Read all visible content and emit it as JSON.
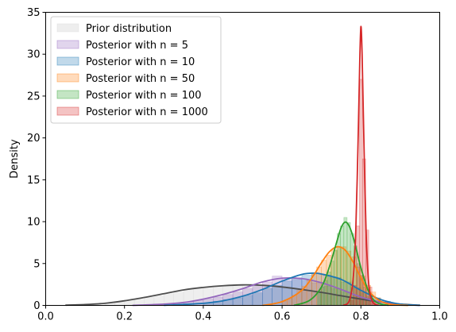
{
  "chart_data": {
    "type": "area",
    "title": "",
    "xlabel": "",
    "ylabel": "Density",
    "xlim": [
      0.0,
      1.0
    ],
    "ylim": [
      0,
      35
    ],
    "x_ticks": [
      "0.0",
      "0.2",
      "0.4",
      "0.6",
      "0.8",
      "1.0"
    ],
    "y_ticks": [
      "0",
      "5",
      "10",
      "15",
      "20",
      "25",
      "30",
      "35"
    ],
    "grid": false,
    "legend_position": "top-left",
    "series": [
      {
        "name": "Prior distribution",
        "hist_color": "#d9d9d9",
        "line_color": "#4d4d4d",
        "curve": {
          "x": [
            0.05,
            0.1,
            0.15,
            0.2,
            0.25,
            0.3,
            0.35,
            0.4,
            0.45,
            0.5,
            0.55,
            0.6,
            0.65,
            0.7,
            0.75,
            0.8,
            0.85,
            0.9,
            0.95
          ],
          "y": [
            0.03,
            0.1,
            0.25,
            0.55,
            0.95,
            1.4,
            1.85,
            2.15,
            2.35,
            2.45,
            2.4,
            2.2,
            1.9,
            1.55,
            1.15,
            0.75,
            0.4,
            0.15,
            0.03
          ]
        },
        "hist": {
          "bin_width": 0.025,
          "bins": [
            [
              0.15,
              0.3
            ],
            [
              0.175,
              0.4
            ],
            [
              0.2,
              0.6
            ],
            [
              0.225,
              0.75
            ],
            [
              0.25,
              1.0
            ],
            [
              0.275,
              1.2
            ],
            [
              0.3,
              1.4
            ],
            [
              0.325,
              1.6
            ],
            [
              0.35,
              1.9
            ],
            [
              0.375,
              2.0
            ],
            [
              0.4,
              2.2
            ],
            [
              0.425,
              2.3
            ],
            [
              0.45,
              2.4
            ],
            [
              0.475,
              2.5
            ],
            [
              0.5,
              2.5
            ],
            [
              0.525,
              2.4
            ],
            [
              0.55,
              2.5
            ],
            [
              0.575,
              2.3
            ],
            [
              0.6,
              2.2
            ],
            [
              0.625,
              2.0
            ],
            [
              0.65,
              1.9
            ],
            [
              0.675,
              1.7
            ],
            [
              0.7,
              1.5
            ],
            [
              0.725,
              1.3
            ],
            [
              0.75,
              1.1
            ],
            [
              0.775,
              0.9
            ],
            [
              0.8,
              0.7
            ],
            [
              0.825,
              0.5
            ],
            [
              0.85,
              0.35
            ],
            [
              0.875,
              0.2
            ]
          ]
        }
      },
      {
        "name": "Posterior with n = 5",
        "hist_color": "#9467bd",
        "line_color": "#9467bd",
        "curve": {
          "x": [
            0.22,
            0.3,
            0.35,
            0.4,
            0.45,
            0.5,
            0.55,
            0.6,
            0.65,
            0.7,
            0.75,
            0.8,
            0.85,
            0.9,
            0.95
          ],
          "y": [
            0.0,
            0.15,
            0.35,
            0.75,
            1.3,
            2.0,
            2.8,
            3.25,
            3.2,
            2.7,
            1.9,
            1.0,
            0.4,
            0.1,
            0.01
          ]
        },
        "hist": {
          "bin_width": 0.025,
          "bins": [
            [
              0.35,
              0.4
            ],
            [
              0.375,
              0.6
            ],
            [
              0.4,
              0.8
            ],
            [
              0.425,
              1.0
            ],
            [
              0.45,
              1.3
            ],
            [
              0.475,
              1.6
            ],
            [
              0.5,
              2.0
            ],
            [
              0.525,
              2.4
            ],
            [
              0.55,
              2.8
            ],
            [
              0.575,
              3.5
            ],
            [
              0.6,
              3.3
            ],
            [
              0.625,
              3.1
            ],
            [
              0.65,
              3.0
            ],
            [
              0.675,
              2.7
            ],
            [
              0.7,
              2.3
            ],
            [
              0.725,
              2.0
            ],
            [
              0.75,
              1.6
            ],
            [
              0.775,
              1.2
            ],
            [
              0.8,
              0.9
            ],
            [
              0.825,
              0.5
            ]
          ]
        }
      },
      {
        "name": "Posterior with n = 10",
        "hist_color": "#1f77b4",
        "line_color": "#1f77b4",
        "curve": {
          "x": [
            0.3,
            0.4,
            0.45,
            0.5,
            0.55,
            0.6,
            0.65,
            0.68,
            0.7,
            0.75,
            0.8,
            0.85,
            0.9,
            0.95
          ],
          "y": [
            0.0,
            0.25,
            0.55,
            1.1,
            1.9,
            2.9,
            3.7,
            3.85,
            3.75,
            3.1,
            1.8,
            0.7,
            0.15,
            0.01
          ]
        },
        "hist": {
          "bin_width": 0.025,
          "bins": [
            [
              0.4,
              0.3
            ],
            [
              0.425,
              0.5
            ],
            [
              0.45,
              0.7
            ],
            [
              0.475,
              0.9
            ],
            [
              0.5,
              1.2
            ],
            [
              0.525,
              1.5
            ],
            [
              0.55,
              2.0
            ],
            [
              0.575,
              2.4
            ],
            [
              0.6,
              2.9
            ],
            [
              0.625,
              3.3
            ],
            [
              0.65,
              3.6
            ],
            [
              0.675,
              3.7
            ],
            [
              0.7,
              3.6
            ],
            [
              0.725,
              3.3
            ],
            [
              0.75,
              2.8
            ],
            [
              0.775,
              2.1
            ],
            [
              0.8,
              1.5
            ],
            [
              0.825,
              0.9
            ],
            [
              0.85,
              0.5
            ]
          ]
        }
      },
      {
        "name": "Posterior with n = 50",
        "hist_color": "#ff7f0e",
        "line_color": "#ff7f0e",
        "curve": {
          "x": [
            0.55,
            0.6,
            0.65,
            0.68,
            0.7,
            0.72,
            0.74,
            0.76,
            0.78,
            0.8,
            0.82,
            0.85,
            0.88,
            0.92
          ],
          "y": [
            0.0,
            0.45,
            1.8,
            3.6,
            5.1,
            6.4,
            7.0,
            6.6,
            5.2,
            3.3,
            1.7,
            0.5,
            0.1,
            0.0
          ]
        },
        "hist": {
          "bin_width": 0.0125,
          "bins": [
            [
              0.6,
              0.5
            ],
            [
              0.6125,
              0.8
            ],
            [
              0.625,
              1.2
            ],
            [
              0.6375,
              1.8
            ],
            [
              0.65,
              2.3
            ],
            [
              0.6625,
              3.0
            ],
            [
              0.675,
              3.8
            ],
            [
              0.6875,
              4.6
            ],
            [
              0.7,
              5.4
            ],
            [
              0.7125,
              6.0
            ],
            [
              0.725,
              6.6
            ],
            [
              0.7375,
              7.0
            ],
            [
              0.75,
              7.0
            ],
            [
              0.7625,
              6.5
            ],
            [
              0.775,
              5.8
            ],
            [
              0.7875,
              4.6
            ],
            [
              0.8,
              3.5
            ],
            [
              0.8125,
              2.4
            ],
            [
              0.825,
              1.6
            ],
            [
              0.8375,
              0.9
            ]
          ]
        }
      },
      {
        "name": "Posterior with n = 100",
        "hist_color": "#2ca02c",
        "line_color": "#2ca02c",
        "curve": {
          "x": [
            0.63,
            0.67,
            0.7,
            0.72,
            0.74,
            0.75,
            0.76,
            0.77,
            0.78,
            0.79,
            0.8,
            0.82,
            0.84,
            0.87
          ],
          "y": [
            0.0,
            0.6,
            2.2,
            4.6,
            7.8,
            9.3,
            9.95,
            9.5,
            8.2,
            6.4,
            4.5,
            1.6,
            0.35,
            0.0
          ]
        },
        "hist": {
          "bin_width": 0.0083,
          "bins": [
            [
              0.69,
              1.5
            ],
            [
              0.6983,
              2.2
            ],
            [
              0.7067,
              3.0
            ],
            [
              0.715,
              4.0
            ],
            [
              0.7233,
              5.3
            ],
            [
              0.7317,
              6.6
            ],
            [
              0.74,
              8.6
            ],
            [
              0.7483,
              9.5
            ],
            [
              0.7567,
              10.5
            ],
            [
              0.765,
              9.9
            ],
            [
              0.7733,
              8.6
            ],
            [
              0.7817,
              7.1
            ],
            [
              0.79,
              5.0
            ],
            [
              0.7983,
              3.6
            ],
            [
              0.8067,
              2.2
            ],
            [
              0.815,
              1.1
            ]
          ]
        }
      },
      {
        "name": "Posterior with n = 1000",
        "hist_color": "#d62728",
        "line_color": "#d62728",
        "curve": {
          "x": [
            0.755,
            0.77,
            0.78,
            0.787,
            0.793,
            0.797,
            0.8,
            0.803,
            0.807,
            0.813,
            0.82,
            0.83,
            0.845
          ],
          "y": [
            0.0,
            0.5,
            3.0,
            9.0,
            20.0,
            29.0,
            33.3,
            30.0,
            21.0,
            9.0,
            2.5,
            0.4,
            0.0
          ]
        },
        "hist": {
          "bin_width": 0.008,
          "bins": [
            [
              0.772,
              0.6
            ],
            [
              0.78,
              2.4
            ],
            [
              0.788,
              9.5
            ],
            [
              0.796,
              27.0
            ],
            [
              0.804,
              17.5
            ],
            [
              0.812,
              9.0
            ],
            [
              0.82,
              2.2
            ],
            [
              0.828,
              0.5
            ]
          ]
        }
      }
    ]
  }
}
